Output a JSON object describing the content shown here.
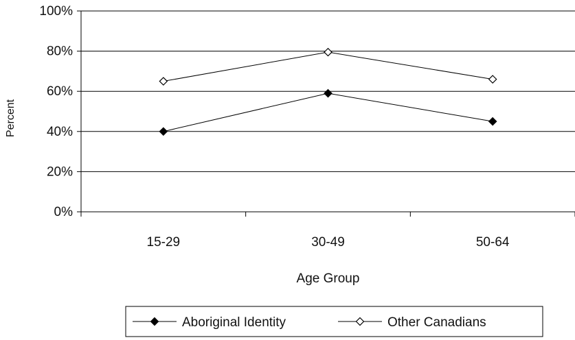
{
  "chart_data": {
    "type": "line",
    "xlabel": "Age Group",
    "ylabel": "Percent",
    "categories": [
      "15-29",
      "30-49",
      "50-64"
    ],
    "ylim": [
      0,
      100
    ],
    "yticks": [
      0,
      20,
      40,
      60,
      80,
      100
    ],
    "ytick_labels": [
      "0%",
      "20%",
      "40%",
      "60%",
      "80%",
      "100%"
    ],
    "grid": true,
    "legend_position": "bottom",
    "series": [
      {
        "name": "Aboriginal Identity",
        "values": [
          40,
          59,
          45
        ],
        "marker": "filled-diamond",
        "color": "#000000"
      },
      {
        "name": "Other Canadians",
        "values": [
          65,
          79.5,
          66
        ],
        "marker": "open-diamond",
        "color": "#000000"
      }
    ]
  }
}
